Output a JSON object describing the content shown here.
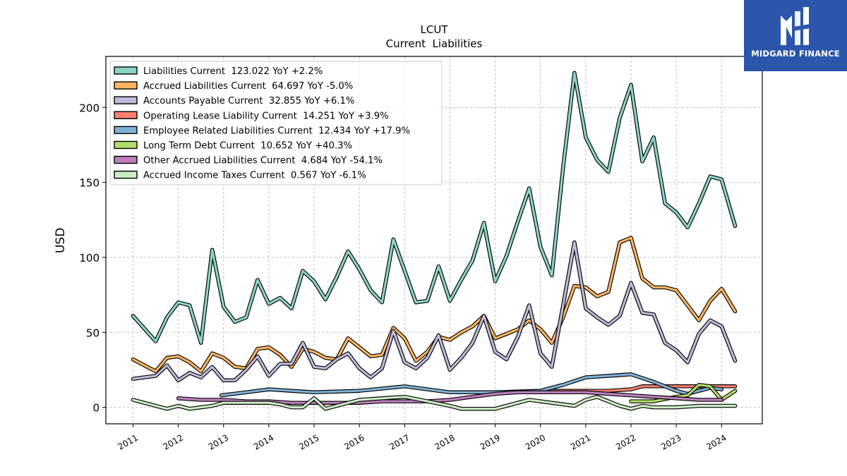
{
  "brand": {
    "name": "MIDGARD FINANCE"
  },
  "chart_data": {
    "type": "line",
    "title": "LCUT",
    "subtitle": "Current  Liabilities",
    "ylabel": "USD",
    "xlabel": "",
    "ylim": [
      -11,
      234
    ],
    "xlim": [
      2010.4,
      2024.9
    ],
    "yticks": [
      0,
      50,
      100,
      150,
      200
    ],
    "xticks": [
      "2011",
      "2012",
      "2013",
      "2014",
      "2015",
      "2016",
      "2017",
      "2018",
      "2019",
      "2020",
      "2021",
      "2022",
      "2023",
      "2024"
    ],
    "grid": true,
    "legend_position": "top-left",
    "series": [
      {
        "name": "Liabilities Current",
        "legend": "Liabilities Current  123.022 YoY +2.2%",
        "color": "#8dd3c7",
        "points": [
          [
            2011.0,
            61
          ],
          [
            2011.5,
            44
          ],
          [
            2011.75,
            60
          ],
          [
            2012.0,
            70
          ],
          [
            2012.25,
            68
          ],
          [
            2012.5,
            43
          ],
          [
            2012.75,
            105
          ],
          [
            2013.0,
            67
          ],
          [
            2013.25,
            57
          ],
          [
            2013.5,
            60
          ],
          [
            2013.75,
            85
          ],
          [
            2014.0,
            69
          ],
          [
            2014.25,
            73
          ],
          [
            2014.5,
            66
          ],
          [
            2014.75,
            91
          ],
          [
            2015.0,
            84
          ],
          [
            2015.25,
            72
          ],
          [
            2015.5,
            87
          ],
          [
            2015.75,
            104
          ],
          [
            2016.0,
            92
          ],
          [
            2016.25,
            78
          ],
          [
            2016.5,
            70
          ],
          [
            2016.75,
            112
          ],
          [
            2017.0,
            91
          ],
          [
            2017.25,
            70
          ],
          [
            2017.5,
            71
          ],
          [
            2017.75,
            94
          ],
          [
            2018.0,
            71
          ],
          [
            2018.25,
            85
          ],
          [
            2018.5,
            98
          ],
          [
            2018.75,
            123
          ],
          [
            2019.0,
            84
          ],
          [
            2019.25,
            101
          ],
          [
            2019.5,
            124
          ],
          [
            2019.75,
            146
          ],
          [
            2020.0,
            107
          ],
          [
            2020.25,
            88
          ],
          [
            2020.5,
            160
          ],
          [
            2020.75,
            223
          ],
          [
            2021.0,
            180
          ],
          [
            2021.25,
            165
          ],
          [
            2021.5,
            157
          ],
          [
            2021.75,
            193
          ],
          [
            2022.0,
            215
          ],
          [
            2022.25,
            164
          ],
          [
            2022.5,
            180
          ],
          [
            2022.75,
            136
          ],
          [
            2023.0,
            130
          ],
          [
            2023.25,
            120
          ],
          [
            2023.5,
            136
          ],
          [
            2023.75,
            154
          ],
          [
            2024.0,
            152
          ],
          [
            2024.3,
            121
          ]
        ]
      },
      {
        "name": "Accrued Liabilities Current",
        "legend": "Accrued Liabilities Current  64.697 YoY -5.0%",
        "color": "#fdb462",
        "points": [
          [
            2011.0,
            32
          ],
          [
            2011.5,
            24
          ],
          [
            2011.75,
            33
          ],
          [
            2012.0,
            34
          ],
          [
            2012.25,
            30
          ],
          [
            2012.5,
            24
          ],
          [
            2012.75,
            36
          ],
          [
            2013.0,
            33
          ],
          [
            2013.25,
            27
          ],
          [
            2013.5,
            26
          ],
          [
            2013.75,
            39
          ],
          [
            2014.0,
            40
          ],
          [
            2014.25,
            35
          ],
          [
            2014.5,
            27
          ],
          [
            2014.75,
            39
          ],
          [
            2015.0,
            37
          ],
          [
            2015.25,
            33
          ],
          [
            2015.5,
            32
          ],
          [
            2015.75,
            46
          ],
          [
            2016.0,
            40
          ],
          [
            2016.25,
            34
          ],
          [
            2016.5,
            35
          ],
          [
            2016.75,
            53
          ],
          [
            2017.0,
            46
          ],
          [
            2017.25,
            31
          ],
          [
            2017.5,
            37
          ],
          [
            2017.75,
            47
          ],
          [
            2018.0,
            45
          ],
          [
            2018.25,
            50
          ],
          [
            2018.5,
            54
          ],
          [
            2018.75,
            61
          ],
          [
            2019.0,
            46
          ],
          [
            2019.25,
            49
          ],
          [
            2019.5,
            52
          ],
          [
            2019.75,
            58
          ],
          [
            2020.0,
            52
          ],
          [
            2020.25,
            43
          ],
          [
            2020.5,
            60
          ],
          [
            2020.75,
            81
          ],
          [
            2021.0,
            80
          ],
          [
            2021.25,
            74
          ],
          [
            2021.5,
            77
          ],
          [
            2021.75,
            110
          ],
          [
            2022.0,
            113
          ],
          [
            2022.25,
            86
          ],
          [
            2022.5,
            80
          ],
          [
            2022.75,
            80
          ],
          [
            2023.0,
            78
          ],
          [
            2023.25,
            68
          ],
          [
            2023.5,
            58
          ],
          [
            2023.75,
            71
          ],
          [
            2024.0,
            79
          ],
          [
            2024.3,
            64
          ]
        ]
      },
      {
        "name": "Accounts Payable Current",
        "legend": "Accounts Payable Current  32.855 YoY +6.1%",
        "color": "#bebada",
        "points": [
          [
            2011.0,
            19
          ],
          [
            2011.5,
            21
          ],
          [
            2011.75,
            28
          ],
          [
            2012.0,
            18
          ],
          [
            2012.25,
            23
          ],
          [
            2012.5,
            20
          ],
          [
            2012.75,
            27
          ],
          [
            2013.0,
            18
          ],
          [
            2013.25,
            18
          ],
          [
            2013.5,
            25
          ],
          [
            2013.75,
            34
          ],
          [
            2014.0,
            21
          ],
          [
            2014.25,
            29
          ],
          [
            2014.5,
            29
          ],
          [
            2014.75,
            43
          ],
          [
            2015.0,
            27
          ],
          [
            2015.25,
            26
          ],
          [
            2015.5,
            32
          ],
          [
            2015.75,
            36
          ],
          [
            2016.0,
            26
          ],
          [
            2016.25,
            20
          ],
          [
            2016.5,
            26
          ],
          [
            2016.75,
            51
          ],
          [
            2017.0,
            30
          ],
          [
            2017.25,
            26
          ],
          [
            2017.5,
            33
          ],
          [
            2017.75,
            48
          ],
          [
            2018.0,
            25
          ],
          [
            2018.25,
            33
          ],
          [
            2018.5,
            43
          ],
          [
            2018.75,
            61
          ],
          [
            2019.0,
            37
          ],
          [
            2019.25,
            32
          ],
          [
            2019.5,
            47
          ],
          [
            2019.75,
            68
          ],
          [
            2020.0,
            36
          ],
          [
            2020.25,
            27
          ],
          [
            2020.5,
            68
          ],
          [
            2020.75,
            110
          ],
          [
            2021.0,
            66
          ],
          [
            2021.25,
            60
          ],
          [
            2021.5,
            55
          ],
          [
            2021.75,
            61
          ],
          [
            2022.0,
            83
          ],
          [
            2022.25,
            63
          ],
          [
            2022.5,
            62
          ],
          [
            2022.75,
            43
          ],
          [
            2023.0,
            38
          ],
          [
            2023.25,
            30
          ],
          [
            2023.5,
            49
          ],
          [
            2023.75,
            58
          ],
          [
            2024.0,
            54
          ],
          [
            2024.3,
            31
          ]
        ]
      },
      {
        "name": "Operating Lease Liability Current",
        "legend": "Operating Lease Liability Current  14.251 YoY +3.9%",
        "color": "#fb8072",
        "points": [
          [
            2020.0,
            11
          ],
          [
            2020.5,
            11
          ],
          [
            2021.0,
            11
          ],
          [
            2021.5,
            11
          ],
          [
            2022.0,
            12
          ],
          [
            2022.25,
            14
          ],
          [
            2022.5,
            14
          ],
          [
            2023.0,
            14
          ],
          [
            2023.5,
            14
          ],
          [
            2024.0,
            14
          ],
          [
            2024.3,
            14
          ]
        ]
      },
      {
        "name": "Employee Related Liabilities Current",
        "legend": "Employee Related Liabilities Current  12.434 YoY +17.9%",
        "color": "#80b1d3",
        "points": [
          [
            2012.95,
            8
          ],
          [
            2013.5,
            10
          ],
          [
            2014.0,
            12
          ],
          [
            2014.5,
            11
          ],
          [
            2015.0,
            10
          ],
          [
            2016.0,
            11
          ],
          [
            2017.0,
            14
          ],
          [
            2018.0,
            10
          ],
          [
            2019.0,
            10
          ],
          [
            2020.0,
            11
          ],
          [
            2020.5,
            15
          ],
          [
            2021.0,
            20
          ],
          [
            2022.0,
            22
          ],
          [
            2022.5,
            17
          ],
          [
            2023.0,
            11
          ],
          [
            2023.25,
            9
          ],
          [
            2023.5,
            11
          ],
          [
            2023.75,
            13
          ],
          [
            2024.0,
            12
          ]
        ]
      },
      {
        "name": "Long Term Debt Current",
        "legend": "Long Term Debt Current  10.652 YoY +40.3%",
        "color": "#b3de69",
        "points": [
          [
            2022.0,
            4
          ],
          [
            2022.5,
            4
          ],
          [
            2023.0,
            7
          ],
          [
            2023.25,
            8
          ],
          [
            2023.5,
            15
          ],
          [
            2023.75,
            14
          ],
          [
            2024.0,
            5
          ],
          [
            2024.3,
            11
          ]
        ]
      },
      {
        "name": "Other Accrued Liabilities Current",
        "legend": "Other Accrued Liabilities Current  4.684 YoY -54.1%",
        "color": "#bc80bd",
        "points": [
          [
            2012.0,
            6
          ],
          [
            2012.5,
            5
          ],
          [
            2013.0,
            5
          ],
          [
            2013.5,
            4
          ],
          [
            2014.0,
            4
          ],
          [
            2014.5,
            3
          ],
          [
            2015.0,
            3
          ],
          [
            2015.5,
            3
          ],
          [
            2016.0,
            3
          ],
          [
            2016.5,
            4
          ],
          [
            2017.0,
            4
          ],
          [
            2017.5,
            4
          ],
          [
            2018.0,
            5
          ],
          [
            2018.5,
            7
          ],
          [
            2019.0,
            9
          ],
          [
            2019.5,
            10
          ],
          [
            2020.0,
            10
          ],
          [
            2020.5,
            10
          ],
          [
            2021.0,
            10
          ],
          [
            2021.5,
            9
          ],
          [
            2022.0,
            8
          ],
          [
            2022.5,
            7
          ],
          [
            2023.0,
            6
          ],
          [
            2023.5,
            5
          ],
          [
            2024.0,
            5
          ]
        ]
      },
      {
        "name": "Accrued Income Taxes Current",
        "legend": "Accrued Income Taxes Current  0.567 YoY -6.1%",
        "color": "#ccebc5",
        "points": [
          [
            2011.0,
            5
          ],
          [
            2011.5,
            1
          ],
          [
            2011.75,
            -1
          ],
          [
            2012.0,
            1
          ],
          [
            2012.25,
            -1
          ],
          [
            2012.5,
            0
          ],
          [
            2012.75,
            1
          ],
          [
            2013.0,
            3
          ],
          [
            2013.5,
            3
          ],
          [
            2014.0,
            3
          ],
          [
            2014.25,
            2
          ],
          [
            2014.5,
            0
          ],
          [
            2014.75,
            0
          ],
          [
            2015.0,
            6
          ],
          [
            2015.25,
            -1
          ],
          [
            2015.5,
            1
          ],
          [
            2016.0,
            5
          ],
          [
            2016.5,
            6
          ],
          [
            2017.0,
            7
          ],
          [
            2017.5,
            4
          ],
          [
            2018.0,
            1
          ],
          [
            2018.25,
            -1
          ],
          [
            2018.5,
            -1
          ],
          [
            2019.0,
            -1
          ],
          [
            2019.5,
            3
          ],
          [
            2019.75,
            5
          ],
          [
            2020.0,
            4
          ],
          [
            2020.5,
            2
          ],
          [
            2020.75,
            1
          ],
          [
            2021.0,
            5
          ],
          [
            2021.25,
            7
          ],
          [
            2021.5,
            4
          ],
          [
            2021.75,
            1
          ],
          [
            2022.0,
            -1
          ],
          [
            2022.25,
            1
          ],
          [
            2022.5,
            0
          ],
          [
            2023.0,
            0
          ],
          [
            2023.5,
            1
          ],
          [
            2024.0,
            1
          ],
          [
            2024.3,
            1
          ]
        ]
      }
    ]
  }
}
